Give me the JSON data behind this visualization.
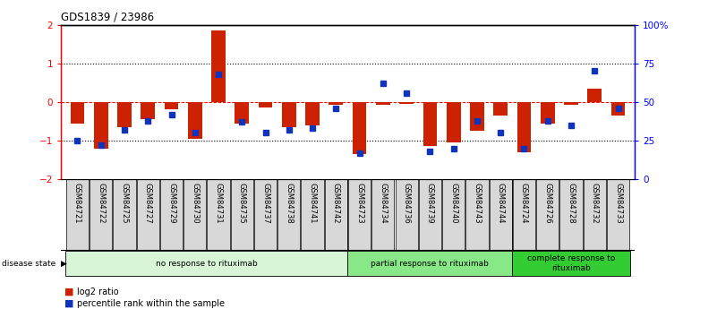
{
  "title": "GDS1839 / 23986",
  "samples": [
    "GSM84721",
    "GSM84722",
    "GSM84725",
    "GSM84727",
    "GSM84729",
    "GSM84730",
    "GSM84731",
    "GSM84735",
    "GSM84737",
    "GSM84738",
    "GSM84741",
    "GSM84742",
    "GSM84723",
    "GSM84734",
    "GSM84736",
    "GSM84739",
    "GSM84740",
    "GSM84743",
    "GSM84744",
    "GSM84724",
    "GSM84726",
    "GSM84728",
    "GSM84732",
    "GSM84733"
  ],
  "log2_ratio": [
    -0.55,
    -1.2,
    -0.65,
    -0.45,
    -0.18,
    -0.95,
    1.85,
    -0.55,
    -0.15,
    -0.65,
    -0.6,
    -0.08,
    -1.35,
    -0.08,
    -0.05,
    -1.15,
    -1.05,
    -0.75,
    -0.35,
    -1.3,
    -0.55,
    -0.08,
    0.35,
    -0.35
  ],
  "percentile": [
    25,
    22,
    32,
    38,
    42,
    30,
    68,
    37,
    30,
    32,
    33,
    46,
    17,
    62,
    56,
    18,
    20,
    38,
    30,
    20,
    38,
    35,
    70,
    46
  ],
  "groups": [
    {
      "label": "no response to rituximab",
      "start": 0,
      "end": 12,
      "color": "#d8f5d8"
    },
    {
      "label": "partial response to rituximab",
      "start": 12,
      "end": 19,
      "color": "#88e888"
    },
    {
      "label": "complete response to\nrituximab",
      "start": 19,
      "end": 24,
      "color": "#33cc33"
    }
  ],
  "bar_color": "#cc2200",
  "dot_color": "#1133bb",
  "ylim": [
    -2,
    2
  ],
  "y2lim": [
    0,
    100
  ],
  "y_ticks": [
    -2,
    -1,
    0,
    1,
    2
  ],
  "y2_ticks": [
    0,
    25,
    50,
    75,
    100
  ],
  "y2_tick_labels": [
    "0",
    "25",
    "50",
    "75",
    "100%"
  ],
  "hline_positions": [
    -1,
    0,
    1
  ],
  "hline_colors": [
    "black",
    "red",
    "black"
  ],
  "hline_styles": [
    "dotted",
    "dashed",
    "dotted"
  ],
  "disease_state_label": "disease state",
  "legend_items": [
    {
      "color": "#cc2200",
      "label": "log2 ratio"
    },
    {
      "color": "#1133bb",
      "label": "percentile rank within the sample"
    }
  ]
}
